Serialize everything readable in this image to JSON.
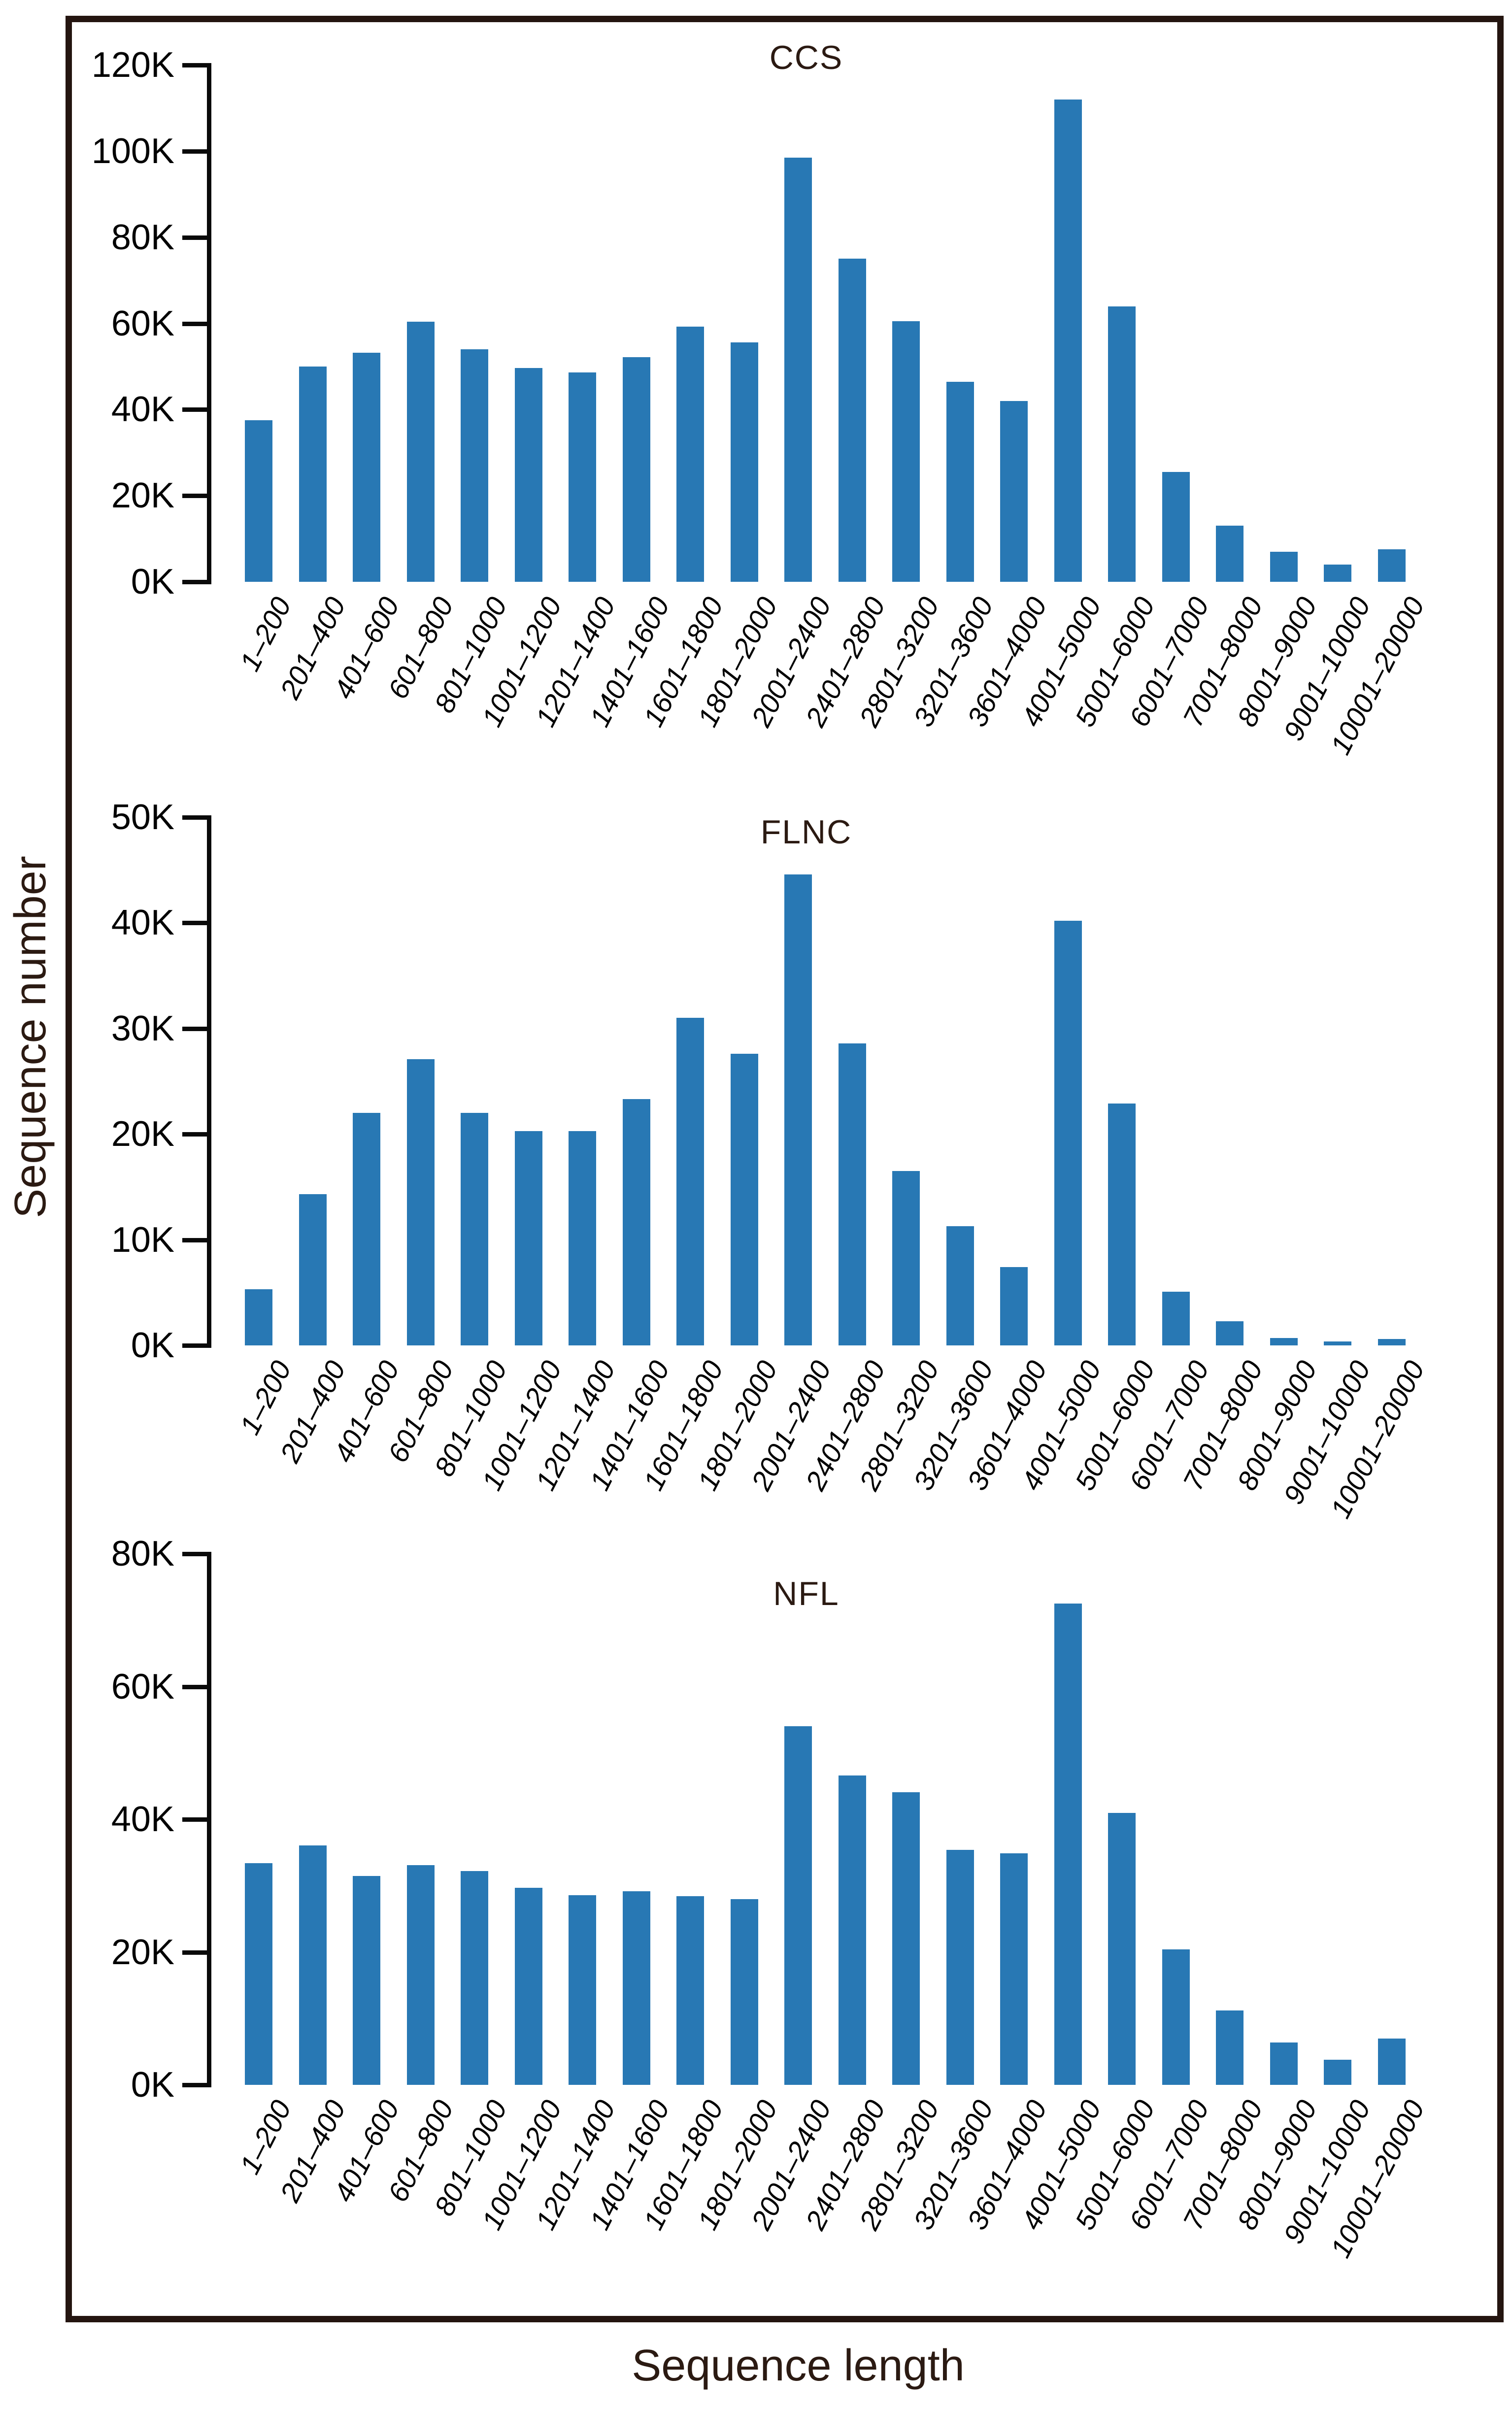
{
  "figure": {
    "x_axis_label": "Sequence length",
    "y_axis_label": "Sequence number",
    "bar_color": "#2878b4",
    "frame_color": "#241510",
    "tick_text_color": "#000000",
    "title_text_color": "#2b1a12",
    "background_color": "#ffffff"
  },
  "chart_data": [
    {
      "type": "bar",
      "title": "CCS",
      "categories": [
        "1–200",
        "201–400",
        "401–600",
        "601–800",
        "801–1000",
        "1001–1200",
        "1201–1400",
        "1401–1600",
        "1601–1800",
        "1801–2000",
        "2001–2400",
        "2401–2800",
        "2801–3200",
        "3201–3600",
        "3601–4000",
        "4001–5000",
        "5001–6000",
        "6001–7000",
        "7001–8000",
        "8001–9000",
        "9001–10000",
        "10001–20000"
      ],
      "values": [
        37500,
        50000,
        53200,
        60400,
        54000,
        49600,
        48600,
        52200,
        59300,
        55600,
        98500,
        75000,
        60500,
        46400,
        42000,
        112000,
        64000,
        25500,
        13000,
        7000,
        4000,
        7500
      ],
      "xlabel": "Sequence length",
      "ylabel": "Sequence number",
      "ylim": [
        0,
        120000
      ],
      "y_tick_values": [
        0,
        20000,
        40000,
        60000,
        80000,
        100000,
        120000
      ],
      "y_tick_labels": [
        "0K",
        "20K",
        "40K",
        "60K",
        "80K",
        "100K",
        "120K"
      ],
      "grid": "off",
      "legend": "none"
    },
    {
      "type": "bar",
      "title": "FLNC",
      "categories": [
        "1–200",
        "201–400",
        "401–600",
        "601–800",
        "801–1000",
        "1001–1200",
        "1201–1400",
        "1401–1600",
        "1601–1800",
        "1801–2000",
        "2001–2400",
        "2401–2800",
        "2801–3200",
        "3201–3600",
        "3601–4000",
        "4001–5000",
        "5001–6000",
        "6001–7000",
        "7001–8000",
        "8001–9000",
        "9001–10000",
        "10001–20000"
      ],
      "values": [
        5300,
        14300,
        22000,
        27100,
        22000,
        20300,
        20300,
        23300,
        31000,
        27600,
        44600,
        28600,
        16500,
        11300,
        7400,
        40200,
        22900,
        5100,
        2300,
        700,
        350,
        600
      ],
      "xlabel": "Sequence length",
      "ylabel": "Sequence number",
      "ylim": [
        0,
        50000
      ],
      "y_tick_values": [
        0,
        10000,
        20000,
        30000,
        40000,
        50000
      ],
      "y_tick_labels": [
        "0K",
        "10K",
        "20K",
        "30K",
        "40K",
        "50K"
      ],
      "grid": "off",
      "legend": "none"
    },
    {
      "type": "bar",
      "title": "NFL",
      "categories": [
        "1–200",
        "201–400",
        "401–600",
        "601–800",
        "801–1000",
        "1001–1200",
        "1201–1400",
        "1401–1600",
        "1601–1800",
        "1801–2000",
        "2001–2400",
        "2401–2800",
        "2801–3200",
        "3201–3600",
        "3601–4000",
        "4001–5000",
        "5001–6000",
        "6001–7000",
        "7001–8000",
        "8001–9000",
        "9001–10000",
        "10001–20000"
      ],
      "values": [
        33400,
        36100,
        31500,
        33100,
        32200,
        29700,
        28600,
        29200,
        28400,
        28000,
        54000,
        46600,
        44100,
        35400,
        34900,
        72500,
        41000,
        20400,
        11200,
        6400,
        3800,
        7000
      ],
      "xlabel": "Sequence length",
      "ylabel": "Sequence number",
      "ylim": [
        0,
        80000
      ],
      "y_tick_values": [
        0,
        20000,
        40000,
        60000,
        80000
      ],
      "y_tick_labels": [
        "0K",
        "20K",
        "40K",
        "60K",
        "80K"
      ],
      "grid": "off",
      "legend": "none"
    }
  ]
}
